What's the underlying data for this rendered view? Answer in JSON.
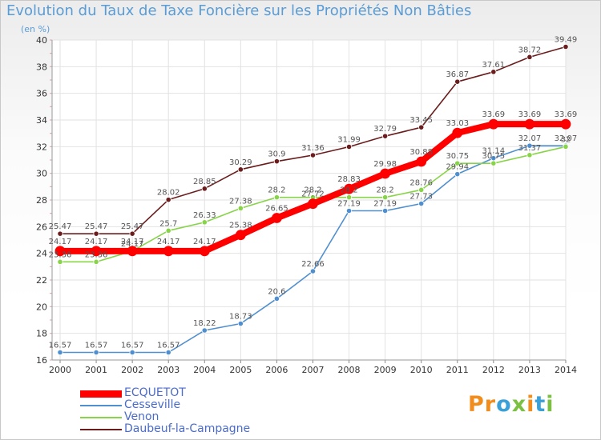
{
  "title": "Evolution du Taux de Taxe Foncière sur les Propriétés Non Bâties",
  "unit": "(en %)",
  "logo": "Proxiti",
  "chart_data": {
    "type": "line",
    "x": [
      "2000",
      "2001",
      "2002",
      "2003",
      "2004",
      "2005",
      "2006",
      "2007",
      "2008",
      "2009",
      "2010",
      "2011",
      "2012",
      "2013",
      "2014"
    ],
    "ylim": [
      16,
      40
    ],
    "yticks": [
      16,
      18,
      20,
      22,
      24,
      26,
      28,
      30,
      32,
      34,
      36,
      38,
      40
    ],
    "grid": true,
    "legend_position": "bottom-left",
    "series": [
      {
        "name": "ECQUETOT",
        "color": "#ff0000",
        "values": [
          24.17,
          24.17,
          24.17,
          24.17,
          24.17,
          25.38,
          26.65,
          27.72,
          28.83,
          29.98,
          30.88,
          33.03,
          33.69,
          33.69,
          33.69
        ],
        "labels": [
          "24.17",
          "24.17",
          "24.17",
          "24.17",
          "24.17",
          "25.38",
          "26.65",
          "27.72",
          "28.83",
          "29.98",
          "30.88",
          "33.03",
          "33.69",
          "33.69",
          "33.69"
        ]
      },
      {
        "name": "Cesseville",
        "color": "#4f8fd0",
        "values": [
          16.57,
          16.57,
          16.57,
          16.57,
          18.22,
          18.73,
          20.6,
          22.66,
          27.19,
          27.19,
          27.73,
          29.94,
          31.14,
          32.07,
          32.07
        ],
        "labels": [
          "16.57",
          "16.57",
          "16.57",
          "16.57",
          "18.22",
          "18.73",
          "20.6",
          "22.66",
          "27.19",
          "27.19",
          "27.73",
          "29.94",
          "31.14",
          "32.07",
          "32.07"
        ]
      },
      {
        "name": "Venon",
        "color": "#88d448",
        "values": [
          23.36,
          23.36,
          24.17,
          25.7,
          26.33,
          27.38,
          28.2,
          28.2,
          28.2,
          28.2,
          28.76,
          30.75,
          30.75,
          31.37,
          32.0
        ],
        "labels": [
          "23.36",
          "23.36",
          "24.17",
          "25.7",
          "26.33",
          "27.38",
          "28.2",
          "28.2",
          "28.2",
          "28.2",
          "28.76",
          "30.75",
          "30.75",
          "31.37",
          "32"
        ]
      },
      {
        "name": "Daubeuf-la-Campagne",
        "color": "#6b1c1c",
        "values": [
          25.47,
          25.47,
          25.47,
          28.02,
          28.85,
          30.29,
          30.9,
          31.36,
          31.99,
          32.79,
          33.45,
          36.87,
          37.61,
          38.72,
          39.49
        ],
        "labels": [
          "25.47",
          "25.47",
          "25.47",
          "28.02",
          "28.85",
          "30.29",
          "30.9",
          "31.36",
          "31.99",
          "32.79",
          "33.45",
          "36.87",
          "37.61",
          "38.72",
          "39.49"
        ]
      }
    ]
  }
}
